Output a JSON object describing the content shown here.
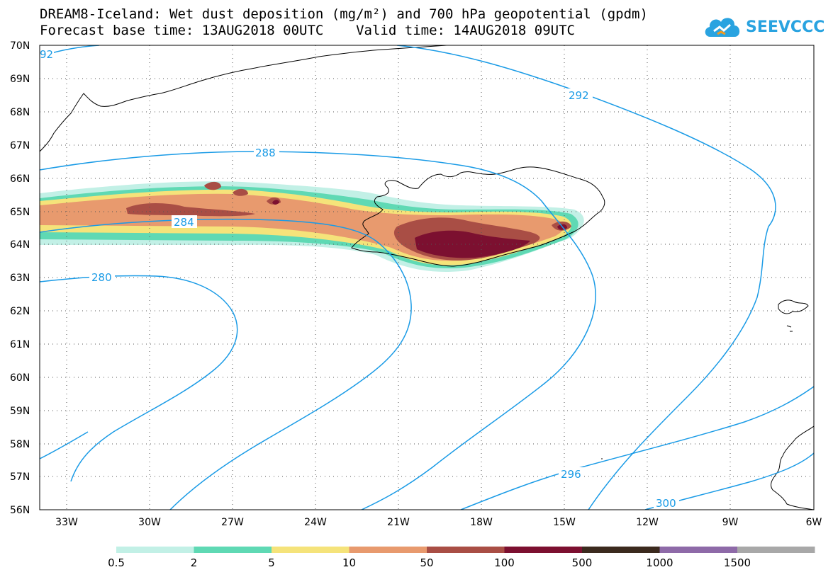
{
  "title_line1": "DREAM8-Iceland: Wet dust deposition (mg/m²) and 700 hPa geopotential (gpdm)",
  "title_line2": "Forecast base time: 13AUG2018 00UTC    Valid time: 14AUG2018 09UTC",
  "logo_text": "SEEVCCC",
  "logo_icon": "cloud-icon",
  "map": {
    "lon_range": [
      -34,
      -6
    ],
    "lat_range": [
      56,
      70
    ],
    "lat_ticks": [
      "70N",
      "69N",
      "68N",
      "67N",
      "66N",
      "65N",
      "64N",
      "63N",
      "62N",
      "61N",
      "60N",
      "59N",
      "58N",
      "57N",
      "56N"
    ],
    "lon_ticks": [
      "33W",
      "30W",
      "27W",
      "24W",
      "21W",
      "18W",
      "15W",
      "12W",
      "9W",
      "6W"
    ],
    "grid": "dotted",
    "contour_color": "#1a9be6",
    "contour_labels": [
      "92",
      "292",
      "288",
      "284",
      "280",
      "296",
      "300"
    ]
  },
  "legend": {
    "labels": [
      "0.5",
      "2",
      "5",
      "10",
      "50",
      "100",
      "500",
      "1000",
      "1500"
    ],
    "colors": [
      "#c2f0e6",
      "#5fd9b4",
      "#f5e37a",
      "#e89a6e",
      "#a94e45",
      "#7c1030",
      "#3b2a1e",
      "#8e6aa8",
      "#a8a8a8"
    ]
  }
}
